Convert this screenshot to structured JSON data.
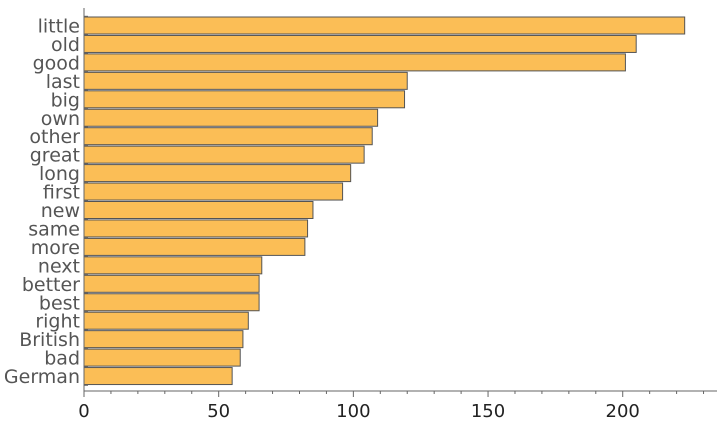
{
  "chart_data": {
    "type": "bar",
    "orientation": "horizontal",
    "categories": [
      "little",
      "old",
      "good",
      "last",
      "big",
      "own",
      "other",
      "great",
      "long",
      "first",
      "new",
      "same",
      "more",
      "next",
      "better",
      "best",
      "right",
      "British",
      "bad",
      "German"
    ],
    "values": [
      223,
      205,
      201,
      120,
      119,
      109,
      107,
      104,
      99,
      96,
      85,
      83,
      82,
      66,
      65,
      65,
      61,
      59,
      58,
      55
    ],
    "xlim": [
      0,
      235
    ],
    "x_ticks": [
      0,
      50,
      100,
      150,
      200
    ],
    "title": "",
    "xlabel": "",
    "ylabel": "",
    "grid": false,
    "bar_color": "#fbbe56",
    "edge_color": "#545454"
  }
}
